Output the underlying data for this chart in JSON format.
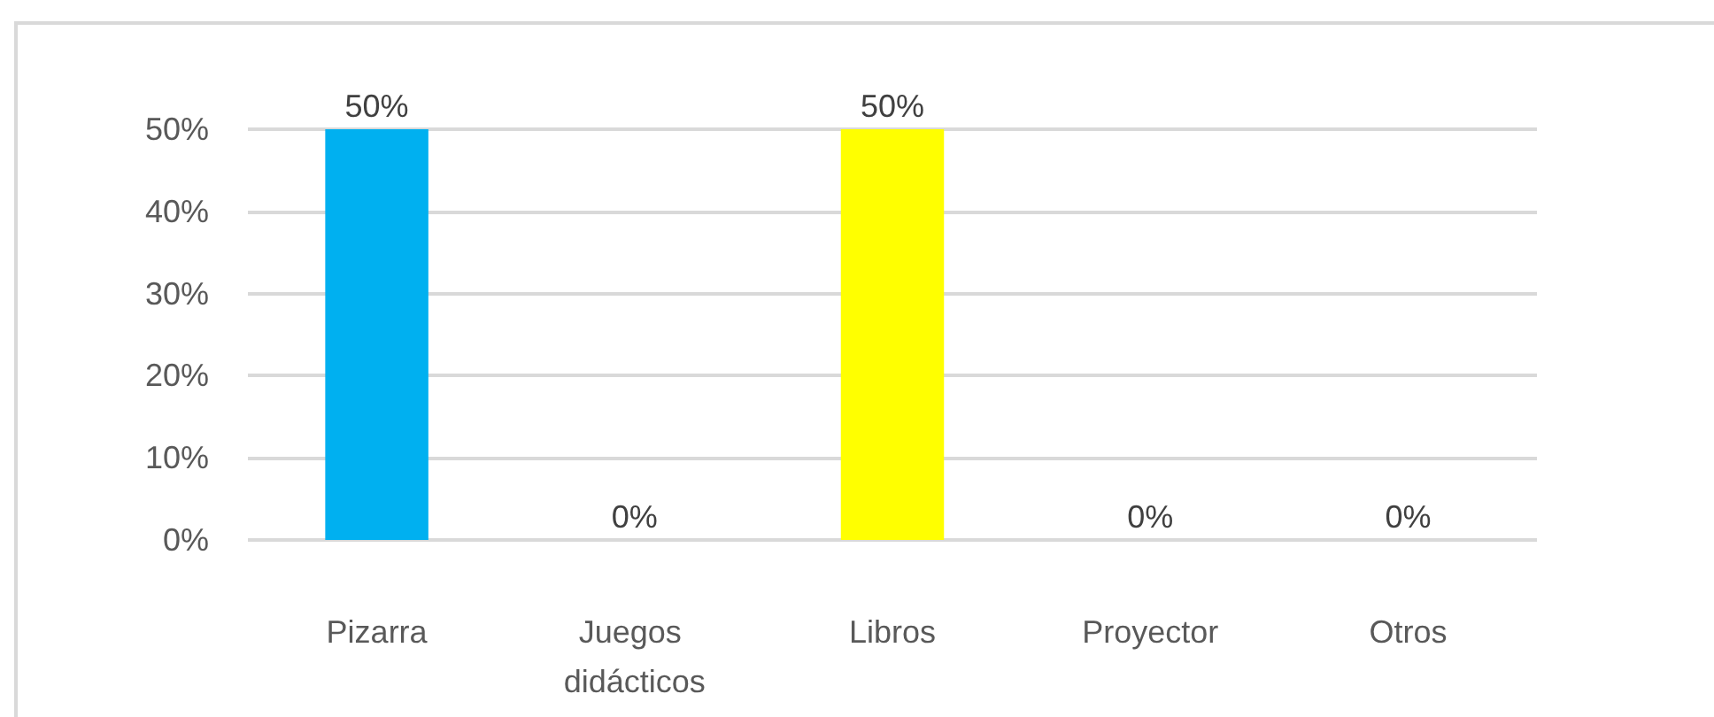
{
  "chart_data": {
    "type": "bar",
    "categories": [
      "Pizarra",
      "Juegos didácticos",
      "Libros",
      "Proyector",
      "Otros"
    ],
    "values": [
      50,
      0,
      50,
      0,
      0
    ],
    "colors": [
      "#00b0f0",
      "#8b0000",
      "#ffff00",
      "#9c4a0e",
      "#00893c"
    ],
    "value_labels": [
      "50%",
      "0%",
      "50%",
      "0%",
      "0%"
    ],
    "ylim": [
      0,
      50
    ],
    "yticks": [
      {
        "value": 0,
        "label": "0%"
      },
      {
        "value": 10,
        "label": "10%"
      },
      {
        "value": 20,
        "label": "20%"
      },
      {
        "value": 30,
        "label": "30%"
      },
      {
        "value": 40,
        "label": "40%"
      },
      {
        "value": 50,
        "label": "50%"
      }
    ],
    "grid": "y"
  }
}
